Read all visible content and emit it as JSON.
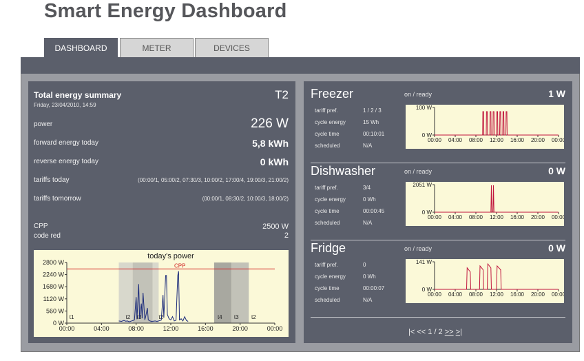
{
  "app_title": "Smart Energy Dashboard",
  "tabs": [
    {
      "label": "DASHBOARD",
      "active": true
    },
    {
      "label": "METER",
      "active": false
    },
    {
      "label": "DEVICES",
      "active": false
    }
  ],
  "summary": {
    "title": "Total energy summary",
    "tariff_badge": "T2",
    "datetime": "Friday, 23/04/2010, 14:59",
    "power_label": "power",
    "power_value": "226 W",
    "forward_label": "forward energy today",
    "forward_value": "5,8 kWh",
    "reverse_label": "reverse energy today",
    "reverse_value": "0 kWh",
    "tariffs_today_label": "tariffs today",
    "tariffs_today_value": "(00:00/1, 05:00/2, 07:30/3, 10:00/2, 17:00/4, 19:00/3, 21:00/2)",
    "tariffs_tomorrow_label": "tariffs tomorrow",
    "tariffs_tomorrow_value": "(00:00/1, 08:30/2, 10:00/3, 18:00/2)",
    "cpp_label": "CPP",
    "cpp_value": "2500 W",
    "code_red_label": "code red",
    "code_red_value": "2"
  },
  "devices": [
    {
      "name": "Freezer",
      "status": "on / ready",
      "power": "1 W",
      "tariff_pref_label": "tariff pref.",
      "tariff_pref": "1 / 2 / 3",
      "cycle_energy_label": "cycle energy",
      "cycle_energy": "15 Wh",
      "cycle_time_label": "cycle time",
      "cycle_time": "00:10:01",
      "scheduled_label": "scheduled",
      "scheduled": "N/A"
    },
    {
      "name": "Dishwasher",
      "status": "on / ready",
      "power": "0 W",
      "tariff_pref_label": "tariff pref.",
      "tariff_pref": "3/4",
      "cycle_energy_label": "cycle energy",
      "cycle_energy": "0 Wh",
      "cycle_time_label": "cycle time",
      "cycle_time": "00:00:45",
      "scheduled_label": "scheduled",
      "scheduled": "N/A"
    },
    {
      "name": "Fridge",
      "status": "on / ready",
      "power": "0 W",
      "tariff_pref_label": "tariff pref.",
      "tariff_pref": "0",
      "cycle_energy_label": "cycle energy",
      "cycle_energy": "0 Wh",
      "cycle_time_label": "cycle time",
      "cycle_time": "00:00:07",
      "scheduled_label": "scheduled",
      "scheduled": "N/A"
    }
  ],
  "pager": {
    "first": "|<",
    "prev": "<<",
    "current": "1 / 2",
    "next": ">>",
    "last": ">|"
  },
  "colors": {
    "panel": "#5b5f6b",
    "frame": "#9a9ca2",
    "chart_bg": "#fbf9d8",
    "main_line": "#1a2a7a",
    "device_line": "#c0143c",
    "cpp_line": "#d02020"
  },
  "chart_data": [
    {
      "type": "line",
      "title": "today's power",
      "xlabel": "",
      "ylabel": "",
      "x_ticks": [
        "00:00",
        "04:00",
        "08:00",
        "12:00",
        "16:00",
        "20:00",
        "00:00"
      ],
      "y_ticks": [
        "2800 W",
        "2240 W",
        "1680 W",
        "1120 W",
        "560 W",
        "0 W"
      ],
      "xlim": [
        0,
        24
      ],
      "ylim": [
        0,
        2800
      ],
      "cpp_label": "CPP",
      "cpp_value": 2500,
      "tariff_labels": [
        {
          "x": 0.3,
          "text": "t1"
        },
        {
          "x": 6.8,
          "text": "t2"
        },
        {
          "x": 8.1,
          "text": "t3"
        },
        {
          "x": 10.6,
          "text": "t2"
        },
        {
          "x": 17.4,
          "text": "t4"
        },
        {
          "x": 19.3,
          "text": "t3"
        },
        {
          "x": 21.3,
          "text": "t2"
        }
      ],
      "shaded_bands": [
        {
          "x0": 6.0,
          "x1": 7.6,
          "shade": "light"
        },
        {
          "x0": 7.6,
          "x1": 9.9,
          "shade": "mid"
        },
        {
          "x0": 9.9,
          "x1": 10.6,
          "shade": "light"
        },
        {
          "x0": 17.0,
          "x1": 19.0,
          "shade": "dark"
        },
        {
          "x0": 19.0,
          "x1": 21.0,
          "shade": "mid"
        }
      ],
      "series": [
        {
          "values": [
            [
              6.0,
              100
            ],
            [
              6.3,
              80
            ],
            [
              6.6,
              120
            ],
            [
              6.8,
              90
            ],
            [
              7.0,
              100
            ],
            [
              7.2,
              60
            ],
            [
              7.4,
              90
            ],
            [
              7.6,
              110
            ],
            [
              7.8,
              150
            ],
            [
              8.0,
              1200
            ],
            [
              8.1,
              180
            ],
            [
              8.3,
              1800
            ],
            [
              8.4,
              200
            ],
            [
              8.6,
              900
            ],
            [
              8.7,
              220
            ],
            [
              8.8,
              1400
            ],
            [
              9.0,
              150
            ],
            [
              9.1,
              300
            ],
            [
              9.3,
              700
            ],
            [
              9.4,
              150
            ],
            [
              9.6,
              100
            ],
            [
              9.8,
              80
            ],
            [
              10.0,
              90
            ],
            [
              10.2,
              100
            ],
            [
              10.4,
              80
            ],
            [
              10.6,
              100
            ],
            [
              10.9,
              140
            ],
            [
              11.1,
              1300
            ],
            [
              11.2,
              250
            ],
            [
              11.4,
              2200
            ],
            [
              11.5,
              2200
            ],
            [
              11.6,
              400
            ],
            [
              11.8,
              200
            ],
            [
              12.0,
              150
            ],
            [
              12.2,
              300
            ],
            [
              12.4,
              100
            ],
            [
              12.6,
              130
            ],
            [
              12.8,
              2200
            ],
            [
              12.9,
              2400
            ],
            [
              13.0,
              150
            ],
            [
              13.2,
              200
            ],
            [
              13.4,
              100
            ],
            [
              13.6,
              300
            ],
            [
              13.8,
              120
            ],
            [
              14.0,
              80
            ]
          ]
        }
      ]
    },
    {
      "type": "line",
      "title": "",
      "xlabel": "",
      "ylabel": "",
      "x_ticks": [
        "00:00",
        "04:00",
        "08:00",
        "12:00",
        "16:00",
        "20:00",
        "00:00"
      ],
      "y_ticks": [
        "100 W",
        "0 W"
      ],
      "xlim": [
        0,
        24
      ],
      "ylim": [
        0,
        100
      ],
      "series": [
        {
          "values": [
            [
              0,
              0
            ],
            [
              9.3,
              0
            ],
            [
              9.35,
              85
            ],
            [
              9.5,
              85
            ],
            [
              9.55,
              0
            ],
            [
              10.0,
              0
            ],
            [
              10.05,
              85
            ],
            [
              10.2,
              85
            ],
            [
              10.25,
              0
            ],
            [
              10.7,
              0
            ],
            [
              10.75,
              85
            ],
            [
              10.9,
              85
            ],
            [
              10.95,
              0
            ],
            [
              11.3,
              0
            ],
            [
              11.35,
              85
            ],
            [
              11.5,
              85
            ],
            [
              11.55,
              0
            ],
            [
              12.0,
              0
            ],
            [
              12.05,
              85
            ],
            [
              12.2,
              85
            ],
            [
              12.25,
              0
            ],
            [
              12.6,
              0
            ],
            [
              12.65,
              85
            ],
            [
              12.8,
              85
            ],
            [
              12.85,
              0
            ],
            [
              13.2,
              0
            ],
            [
              13.25,
              85
            ],
            [
              13.4,
              85
            ],
            [
              13.45,
              0
            ],
            [
              13.8,
              0
            ],
            [
              13.85,
              85
            ],
            [
              14.0,
              85
            ],
            [
              14.05,
              0
            ],
            [
              24,
              0
            ]
          ]
        }
      ]
    },
    {
      "type": "line",
      "title": "",
      "xlabel": "",
      "ylabel": "",
      "x_ticks": [
        "00:00",
        "04:00",
        "08:00",
        "12:00",
        "16:00",
        "20:00",
        "00:00"
      ],
      "y_ticks": [
        "2051 W",
        "0 W"
      ],
      "xlim": [
        0,
        24
      ],
      "ylim": [
        0,
        2051
      ],
      "series": [
        {
          "values": [
            [
              0,
              0
            ],
            [
              10.9,
              0
            ],
            [
              11.0,
              2000
            ],
            [
              11.1,
              0
            ],
            [
              11.3,
              0
            ],
            [
              11.4,
              2000
            ],
            [
              11.5,
              0
            ],
            [
              24,
              0
            ]
          ]
        }
      ]
    },
    {
      "type": "line",
      "title": "",
      "xlabel": "",
      "ylabel": "",
      "x_ticks": [
        "00:00",
        "04:00",
        "08:00",
        "12:00",
        "16:00",
        "20:00",
        "00:00"
      ],
      "y_ticks": [
        "141 W",
        "0 W"
      ],
      "xlim": [
        0,
        24
      ],
      "ylim": [
        0,
        141
      ],
      "series": [
        {
          "values": [
            [
              0,
              0
            ],
            [
              6.2,
              0
            ],
            [
              6.3,
              110
            ],
            [
              6.9,
              90
            ],
            [
              7.0,
              0
            ],
            [
              8.7,
              0
            ],
            [
              8.8,
              120
            ],
            [
              9.4,
              100
            ],
            [
              9.5,
              0
            ],
            [
              10.2,
              0
            ],
            [
              10.3,
              130
            ],
            [
              10.9,
              110
            ],
            [
              11.0,
              0
            ],
            [
              12.0,
              0
            ],
            [
              12.1,
              120
            ],
            [
              12.8,
              100
            ],
            [
              12.9,
              0
            ],
            [
              24,
              0
            ]
          ]
        }
      ]
    }
  ]
}
